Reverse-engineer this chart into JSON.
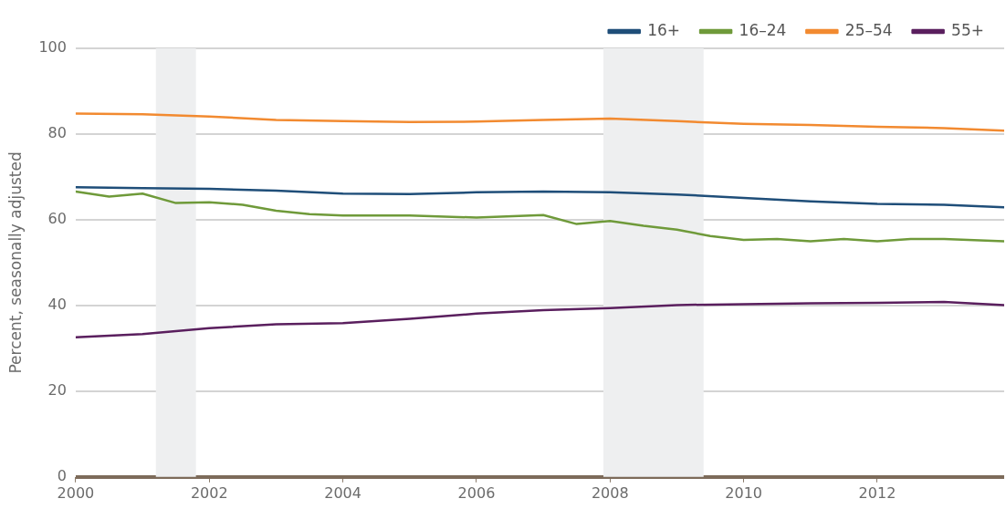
{
  "chart_data": {
    "type": "line",
    "ylabel": "Percent, seasonally adjusted",
    "xlim": [
      2000,
      2013.9
    ],
    "xticks": [
      2000,
      2002,
      2004,
      2006,
      2008,
      2010,
      2012
    ],
    "ylim": [
      0,
      100
    ],
    "yticks": [
      0,
      20,
      40,
      60,
      80,
      100
    ],
    "grid": "y",
    "legend": "top right",
    "marker": "none",
    "line_style": "solid",
    "bands": [
      {
        "axis": "x",
        "from": 2001.2,
        "to": 2001.8,
        "color": "#eeeff0"
      },
      {
        "axis": "x",
        "from": 2007.9,
        "to": 2009.4,
        "color": "#eeeff0"
      }
    ],
    "series": [
      {
        "name": "16+",
        "color": "#1f4e79",
        "x": [
          2000,
          2001,
          2002,
          2003,
          2004,
          2005,
          2006,
          2007,
          2008,
          2009,
          2010,
          2011,
          2012,
          2013,
          2013.9
        ],
        "values": [
          67.6,
          67.4,
          67.2,
          66.8,
          66.1,
          66.0,
          66.4,
          66.6,
          66.4,
          65.9,
          65.1,
          64.3,
          63.7,
          63.5,
          62.9
        ]
      },
      {
        "name": "16–24",
        "color": "#6f9a3a",
        "x": [
          2000,
          2000.5,
          2001,
          2001.5,
          2002,
          2002.5,
          2003,
          2003.5,
          2004,
          2005,
          2006,
          2007,
          2007.5,
          2008,
          2008.5,
          2009,
          2009.5,
          2010,
          2010.5,
          2011,
          2011.5,
          2012,
          2012.5,
          2013,
          2013.9
        ],
        "values": [
          66.6,
          65.4,
          66.1,
          63.9,
          64.1,
          63.5,
          62.1,
          61.3,
          61.0,
          61.0,
          60.5,
          61.1,
          59.0,
          59.7,
          58.6,
          57.7,
          56.2,
          55.3,
          55.5,
          55.0,
          55.5,
          55.0,
          55.5,
          55.5,
          55.0
        ]
      },
      {
        "name": "25–54",
        "color": "#f28a30",
        "x": [
          2000,
          2001,
          2002,
          2003,
          2004,
          2005,
          2006,
          2007,
          2008,
          2009,
          2010,
          2011,
          2012,
          2013,
          2013.9
        ],
        "values": [
          84.8,
          84.6,
          84.1,
          83.3,
          83.0,
          82.8,
          82.9,
          83.3,
          83.6,
          83.0,
          82.4,
          82.1,
          81.7,
          81.4,
          80.8
        ]
      },
      {
        "name": "55+",
        "color": "#5a1f5e",
        "x": [
          2000,
          2001,
          2002,
          2003,
          2004,
          2005,
          2006,
          2007,
          2008,
          2009,
          2010,
          2011,
          2012,
          2013,
          2013.9
        ],
        "values": [
          32.6,
          33.3,
          34.7,
          35.6,
          35.9,
          36.9,
          38.1,
          38.9,
          39.4,
          40.1,
          40.3,
          40.5,
          40.6,
          40.8,
          40.1
        ]
      }
    ]
  }
}
